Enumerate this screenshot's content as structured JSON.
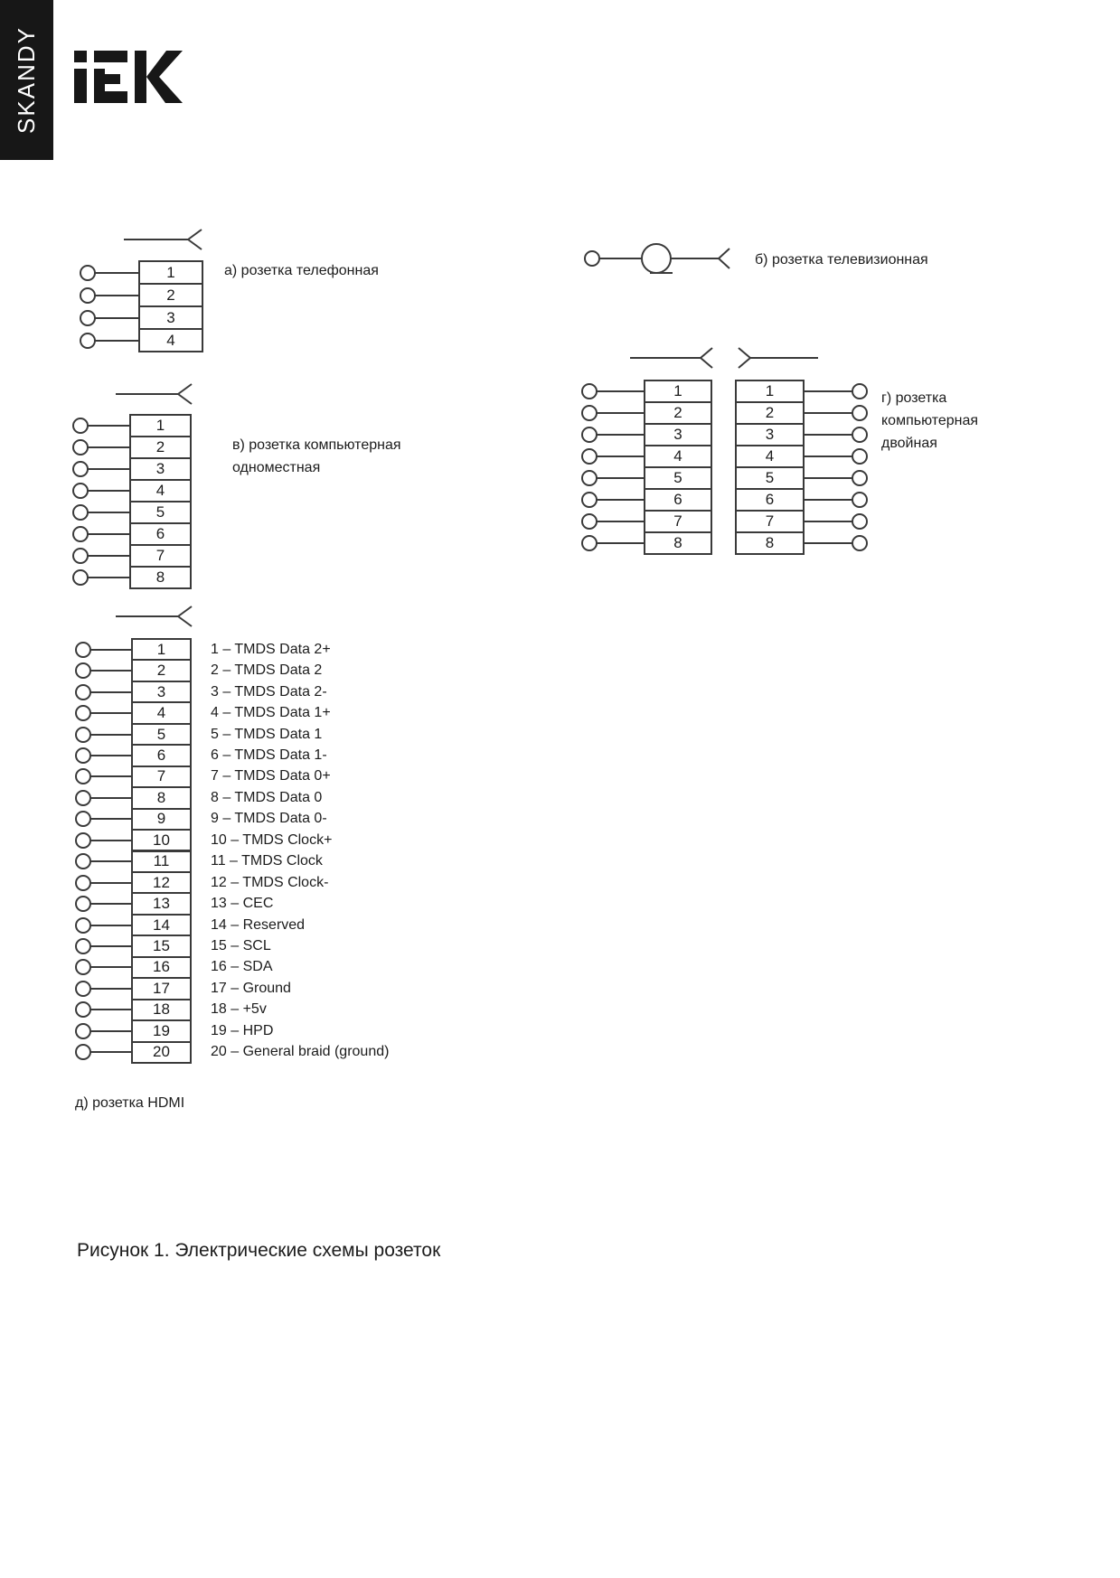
{
  "brand": {
    "sidebar_text": "SKANDY",
    "logo_text": "IEK"
  },
  "palette": {
    "ink": "#1c1c1c",
    "line": "#3a3a3a",
    "banner_bg": "#171717",
    "banner_text": "#ffffff",
    "paper": "#ffffff"
  },
  "diagrams": {
    "a": {
      "id_label": "а) розетка телефонная",
      "pins": [
        "1",
        "2",
        "3",
        "4"
      ]
    },
    "b": {
      "id_label": "б) розетка телевизионная"
    },
    "v": {
      "id_label": "в) розетка компьютерная одноместная",
      "pins": [
        "1",
        "2",
        "3",
        "4",
        "5",
        "6",
        "7",
        "8"
      ]
    },
    "g": {
      "id_label": "г) розетка компьютерная двойная",
      "left_pins": [
        "1",
        "2",
        "3",
        "4",
        "5",
        "6",
        "7",
        "8"
      ],
      "right_pins": [
        "1",
        "2",
        "3",
        "4",
        "5",
        "6",
        "7",
        "8"
      ]
    },
    "d": {
      "id_label": "д) розетка HDMI",
      "pins": [
        "1",
        "2",
        "3",
        "4",
        "5",
        "6",
        "7",
        "8",
        "9",
        "10",
        "11",
        "12",
        "13",
        "14",
        "15",
        "16",
        "17",
        "18",
        "19",
        "20"
      ],
      "pin_labels": [
        "1 – TMDS Data 2+",
        "2 – TMDS Data 2",
        "3 – TMDS Data 2-",
        "4 – TMDS Data 1+",
        "5 – TMDS Data 1",
        "6 – TMDS Data 1-",
        "7 – TMDS Data 0+",
        "8 – TMDS Data 0",
        "9 – TMDS Data 0-",
        "10 – TMDS Clock+",
        "11 – TMDS Clock",
        "12 – TMDS Clock-",
        "13 – CEC",
        "14 – Reserved",
        "15 – SCL",
        "16 – SDA",
        "17 – Ground",
        "18 – +5v",
        "19 – HPD",
        "20 – General braid (ground)"
      ]
    }
  },
  "figure_caption": "Рисунок 1. Электрические схемы розеток"
}
